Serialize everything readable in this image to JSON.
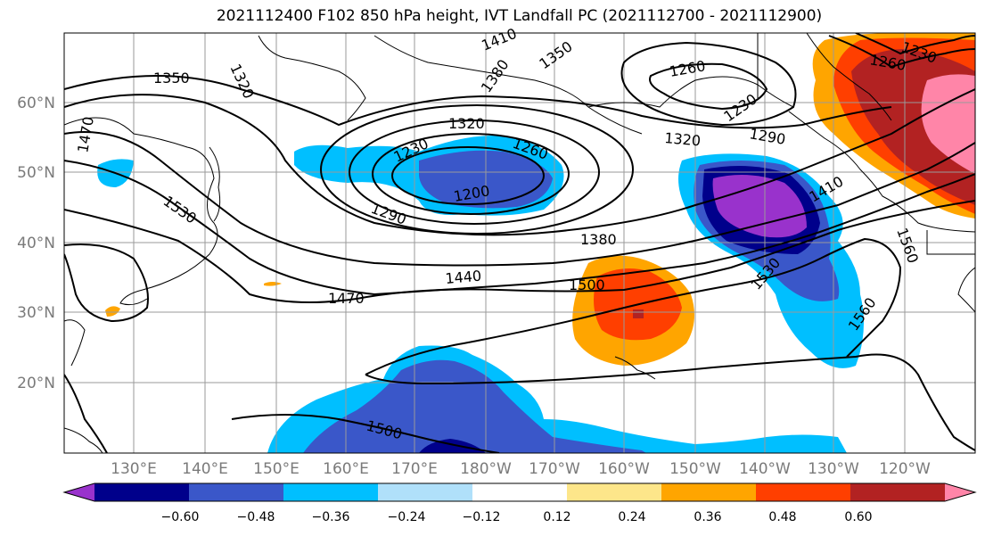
{
  "title": "2021112400 F102 850 hPa height, IVT Landfall PC (2021112700 - 2021112900)",
  "lat_labels": [
    "60°N",
    "50°N",
    "40°N",
    "30°N",
    "20°N"
  ],
  "lon_labels": [
    "130°E",
    "140°E",
    "150°E",
    "160°E",
    "170°E",
    "180°W",
    "170°W",
    "160°W",
    "150°W",
    "140°W",
    "130°W",
    "120°W"
  ],
  "contour_labels": [
    "1410",
    "1380",
    "1350",
    "1320",
    "1260",
    "1230",
    "1470",
    "1350",
    "1320",
    "1230",
    "1260",
    "1200",
    "1290",
    "1320",
    "1290",
    "1530",
    "1410",
    "1380",
    "1440",
    "1470",
    "1500",
    "1530",
    "1560",
    "1560",
    "1500",
    "1260",
    "1230"
  ],
  "colorbar": {
    "ticks": [
      "−0.60",
      "−0.48",
      "−0.36",
      "−0.24",
      "−0.12",
      "0.12",
      "0.24",
      "0.36",
      "0.48",
      "0.60"
    ],
    "colors": [
      "#9932cc",
      "#00008b",
      "#3a57c9",
      "#00bfff",
      "#b0e0fa",
      "#ffffff",
      "#fde68a",
      "#ffa500",
      "#ff3f00",
      "#b22222",
      "#ff85a8"
    ]
  }
}
